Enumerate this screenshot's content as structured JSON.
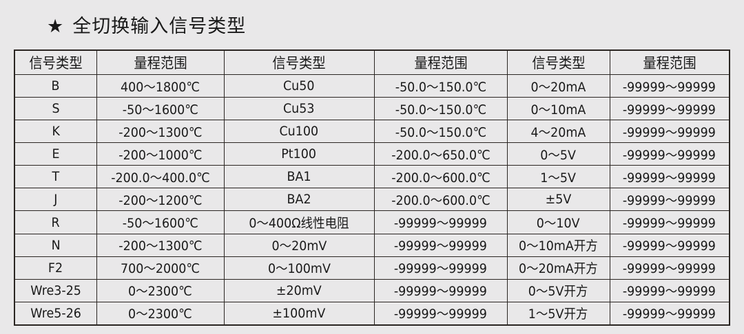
{
  "title": {
    "icon": "star-icon",
    "star": "★",
    "text": "全切换输入信号类型"
  },
  "table": {
    "headers": [
      "信号类型",
      "量程范围",
      "信号类型",
      "量程范围",
      "信号类型",
      "量程范围"
    ],
    "rows": [
      [
        "B",
        "400～1800℃",
        "Cu50",
        "-50.0～150.0℃",
        "0～20mA",
        "-99999～99999"
      ],
      [
        "S",
        "-50～1600℃",
        "Cu53",
        "-50.0～150.0℃",
        "0～10mA",
        "-99999～99999"
      ],
      [
        "K",
        "-200～1300℃",
        "Cu100",
        "-50.0～150.0℃",
        "4～20mA",
        "-99999～99999"
      ],
      [
        "E",
        "-200～1000℃",
        "Pt100",
        "-200.0～650.0℃",
        "0～5V",
        "-99999～99999"
      ],
      [
        "T",
        "-200.0～400.0℃",
        "BA1",
        "-200.0～600.0℃",
        "1～5V",
        "-99999～99999"
      ],
      [
        "J",
        "-200～1200℃",
        "BA2",
        "-200.0～600.0℃",
        "±5V",
        "-99999～99999"
      ],
      [
        "R",
        "-50～1600℃",
        "0～400Ω线性电阻",
        "-99999～99999",
        "0～10V",
        "-99999～99999"
      ],
      [
        "N",
        "-200～1300℃",
        "0～20mV",
        "-99999～99999",
        "0～10mA开方",
        "-99999～99999"
      ],
      [
        "F2",
        "700～2000℃",
        "0～100mV",
        "-99999～99999",
        "0～20mA开方",
        "-99999～99999"
      ],
      [
        "Wre3-25",
        "0～2300℃",
        "±20mV",
        "-99999～99999",
        "0～5V开方",
        "-99999～99999"
      ],
      [
        "Wre5-26",
        "0～2300℃",
        "±100mV",
        "-99999～99999",
        "1～5V开方",
        "-99999～99999"
      ]
    ]
  }
}
